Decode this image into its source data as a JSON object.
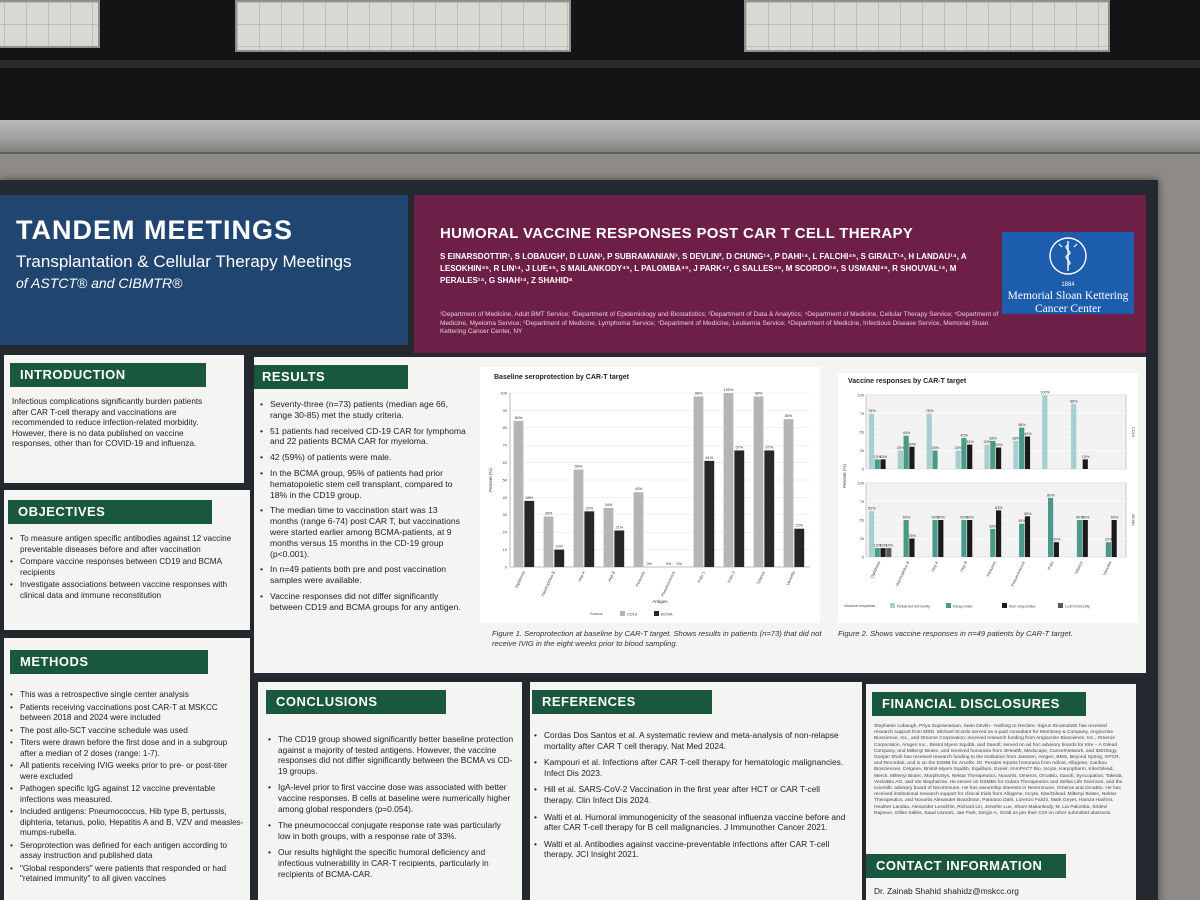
{
  "tandem": {
    "title": "TANDEM MEETINGS",
    "subtitle": "Transplantation & Cellular Therapy Meetings",
    "org": "of ASTCT® and CIBMTR®"
  },
  "poster": {
    "title": "HUMORAL VACCINE RESPONSES POST CAR T CELL THERAPY",
    "authors": "S EINARSDOTTIR¹, S LOBAUGH², D LUAN¹, P SUBRAMANIAN³, S DEVLIN², D CHUNG¹⁴, P DAHI¹⁴, L FALCHI⁴⁵, S GIRALT¹⁴, H LANDAU¹⁴, A LESOKHIN⁴⁵, R LIN¹⁴, J LUE⁴⁵, S MAILANKODY⁴⁵, L PALOMBA⁴⁵, J PARK⁴⁷, G SALLES⁴⁵, M SCORDO¹⁴, S USMANI⁴⁵, R SHOUVAL¹⁴, M PERALES¹⁴, G SHAH¹⁴, Z SHAHID⁸",
    "affiliations": "¹Department of Medicine, Adult BMT Service; ²Department of Epidemiology and Biostatistics; ³Department of Data & Analytics; ⁴Department of Medicine, Cellular Therapy Service; ⁵Department of Medicine, Myeloma Service; ⁶Department of Medicine, Lymphoma Service; ⁷Department of Medicine, Leukemia Service; ⁸Department of Medicine, Infectious Disease Service, Memorial Sloan Kettering Cancer Center, NY"
  },
  "logo": {
    "year": "1884",
    "name": "Memorial Sloan Kettering Cancer Center"
  },
  "introduction": {
    "heading": "INTRODUCTION",
    "text": "Infectious complications significantly burden patients after CAR T-cell therapy and vaccinations are recommended to reduce infection-related morbidity. However, there is no data published on vaccine responses, other than for COVID-19 and influenza."
  },
  "objectives": {
    "heading": "OBJECTIVES",
    "items": [
      "To measure antigen specific antibodies against 12 vaccine preventable diseases before and after vaccination",
      "Compare vaccine responses between CD19 and BCMA recipients",
      "Investigate associations between vaccine responses with clinical data and immune reconstitution"
    ]
  },
  "methods": {
    "heading": "METHODS",
    "items": [
      "This was a retrospective single center analysis",
      "Patients receiving vaccinations post CAR-T at MSKCC between 2018 and 2024 were included",
      "The post allo-SCT vaccine schedule was used",
      "Titers were drawn before the first dose and in a subgroup after a median of 2 doses (range: 1-7).",
      "All patients receiving IVIG weeks prior to pre- or post-titer were excluded",
      "Pathogen specific IgG against 12 vaccine preventable infections was measured.",
      "Included antigens: Pneumococcus, Hib type B, pertussis, diphteria, tetanus, polio, Hepatitis A and B, VZV and measles-mumps-rubella.",
      "Seroprotection was defined for each antigen according to assay instruction and published data",
      "\"Global responders\" were patients that responded or had \"retained immunity\" to all given vaccines"
    ]
  },
  "results": {
    "heading": "RESULTS",
    "items": [
      "Seventy-three (n=73) patients (median age 66, range 30-85) met the study criteria.",
      "51 patients had received CD-19 CAR for lymphoma and 22 patients BCMA CAR for myeloma.",
      "42 (59%) of patients were male.",
      "In the BCMA group, 95% of patients had prior hematopoietic stem cell transplant, compared to 18% in the CD19 group.",
      "The median time to vaccination start was 13 months (range 6-74) post CAR T, but vaccinations were started earlier among BCMA-patients, at 9 months versus 15 months in the CD-19 group (p<0.001).",
      "In n=49 patients both pre and post vaccination samples were available.",
      "Vaccine responses did not differ significantly between CD19 and BCMA groups for any antigen."
    ]
  },
  "figure1": {
    "caption": "Figure 1. Seroprotection at baseline by CAR-T target. Shows results in patients (n=73) that did not receive IVIG in the eight weeks prior to blood sampling."
  },
  "figure2": {
    "caption": "Figure 2. Shows vaccine responses in n=49 patients by CAR-T target."
  },
  "conclusions": {
    "heading": "CONCLUSIONS",
    "items": [
      "The CD19 group showed significantly better baseline protection against a majority of tested antigens. However, the vaccine responses did not differ significantly between the BCMA vs CD-19 groups.",
      "IgA-level prior to first vaccine dose was associated with better vaccine responses. B cells at baseline were numerically higher among global responders (p=0.054).",
      "The pneumococcal conjugate response rate was particularly low in both groups, with a response rate of 33%.",
      "Our results highlight the specific humoral deficiency and infectious vulnerability in CAR-T recipients, particularly in recipients of BCMA-CAR."
    ]
  },
  "references": {
    "heading": "REFERENCES",
    "items": [
      "Cordas Dos Santos et al. A systematic review and meta-analysis of non-relapse mortality after CAR T cell therapy. Nat Med 2024.",
      "Kampouri et al. Infections after CAR T-cell therapy for hematologic malignancies. Infect Dis 2023.",
      "Hill et al. SARS-CoV-2 Vaccination in the first year after HCT or CAR T-cell therapy. Clin Infect Dis 2024.",
      "Walti et al. Humoral immunogenicity of the seasonal influenza vaccine before and after CAR T-cell therapy for B cell malignancies. J Immunother Cancer 2021.",
      "Walti et al. Antibodies against vaccine-preventable infections after CAR T-cell therapy. JCI Insight 2021."
    ]
  },
  "disclosures": {
    "heading": "FINANCIAL DISCLOSURES",
    "text": "Stephanie Lobaugh, Priya Supramanian, Sean Devlin - Nothing to Declare. Sigrun Einarsdottir has received research support from MSD. Michael Scordo served as a paid consultant for McKinsey & Company, Angiocrine Bioscience, Inc., and Omeros Corporation; received research funding from Angiocrine Bioscience, Inc., Omeros Corporation, Amgen Inc., Bristol Myers Squibb, and Sanofi; served on ad hoc advisory boards for Kite – A Gilead Company, and Miltenyi Biotec, and received honoraria from i3Health, Medscape, CancerNetwork, and IDEOlogy. Gunjan Shah has received research funding to the institution from Janssen, Amgen, BMS, Beyond Spring, GPCR, and Recordati, and is on the DSMB for ArcellX. Dr. Perales reports honoraria from Adicet, Allogene, Caribou Biosciences, Celgene, Bristol-Myers Squibb, Equillium, Exevir, ImmPACT Bio, Incyte, Karyopharm, Kite/Gilead, Merck, Miltenyi Biotec, MorphoSys, Nektar Therapeutics, Novartis, Omeros, OrcaBio, Sanofi, Syncopation, Takeda, VectivBio AG, and Vor Biopharma. He serves on DSMBs for Cidara Therapeutics and Sellas Life Sciences, and the scientific advisory board of NexImmune. He has ownership interests in NexImmune, Omeros and OrcaBio. He has received institutional research support for clinical trials from Allogene, Incyte, Kite/Gilead, Miltenyi Biotec, Nektar Therapeutics, and Novartis Alexander Boardman, Parastoo Dahi, Lorenzo Falchi, Mark Geyer, Hamza Hashmi, Heather Landau, Alexander Lesokhin, Richard Lin, Jennifer Lue, Sham Mailankody, M. Lia Palomba, Sridevi Rajeeve, Gilles Salles, Saad Usmani, Jae Park, Sergio A. Giralt as per their COI on other submitted abstracts."
  },
  "contact": {
    "heading": "CONTACT INFORMATION",
    "text": "Dr. Zainab Shahid shahidz@mskcc.org"
  },
  "chart_data": [
    {
      "type": "bar",
      "title": "Baseline seroprotection by CAR-T target",
      "xlabel": "Antigen",
      "ylabel": "Percent (%)",
      "ylim": [
        0,
        100
      ],
      "legend_title": "Source",
      "categories": [
        "Diphtheria",
        "Haemophilus B",
        "Hep A",
        "Hep B",
        "Pertussis",
        "Pneumococcus",
        "Polio 1",
        "Polio 3",
        "Tetanus",
        "Varicella"
      ],
      "series": [
        {
          "name": "CD19",
          "values": [
            84,
            29,
            56,
            34,
            43,
            0,
            98,
            100,
            98,
            85
          ]
        },
        {
          "name": "BCMA",
          "values": [
            38,
            10,
            32,
            21,
            0,
            0,
            61,
            67,
            67,
            22
          ]
        }
      ],
      "colors": {
        "CD19": "#b5b5b5",
        "BCMA": "#262626"
      }
    },
    {
      "type": "bar",
      "title": "Vaccine responses by CAR-T target",
      "xlabel": "Antigen",
      "ylabel": "Percent (%)",
      "ylim": [
        0,
        100
      ],
      "legend_title": "Vaccine response",
      "panels": [
        "CD19",
        "BCMA"
      ],
      "categories": [
        "Diphtheria",
        "Haemophilus B",
        "Hep A",
        "Hep B",
        "Pertussis",
        "Pneumococcus",
        "Polio",
        "Tetanus",
        "Varicella"
      ],
      "series": [
        {
          "name": "Retained immunity",
          "values_cd19": [
            75,
            25,
            75,
            25,
            33,
            38,
            100,
            88,
            0
          ],
          "values_bcma": [
            62,
            0,
            0,
            0,
            0,
            0,
            0,
            0,
            0
          ]
        },
        {
          "name": "Responder",
          "values_cd19": [
            13,
            45,
            25,
            42,
            38,
            56,
            0,
            0,
            0
          ],
          "values_bcma": [
            12,
            50,
            50,
            50,
            38,
            45,
            80,
            50,
            20
          ]
        },
        {
          "name": "Non-responder",
          "values_cd19": [
            13,
            30,
            0,
            33,
            29,
            44,
            0,
            13,
            0
          ],
          "values_bcma": [
            12,
            25,
            50,
            50,
            63,
            55,
            20,
            50,
            50
          ]
        },
        {
          "name": "Lost immunity",
          "values_cd19": [
            0,
            0,
            0,
            0,
            0,
            0,
            0,
            0,
            0
          ],
          "values_bcma": [
            12,
            0,
            0,
            0,
            0,
            0,
            0,
            0,
            0
          ]
        }
      ],
      "colors": {
        "Retained immunity": "#a7cfcf",
        "Responder": "#4a9a8a",
        "Non-responder": "#1a1a1a",
        "Lost immunity": "#585858"
      }
    }
  ]
}
